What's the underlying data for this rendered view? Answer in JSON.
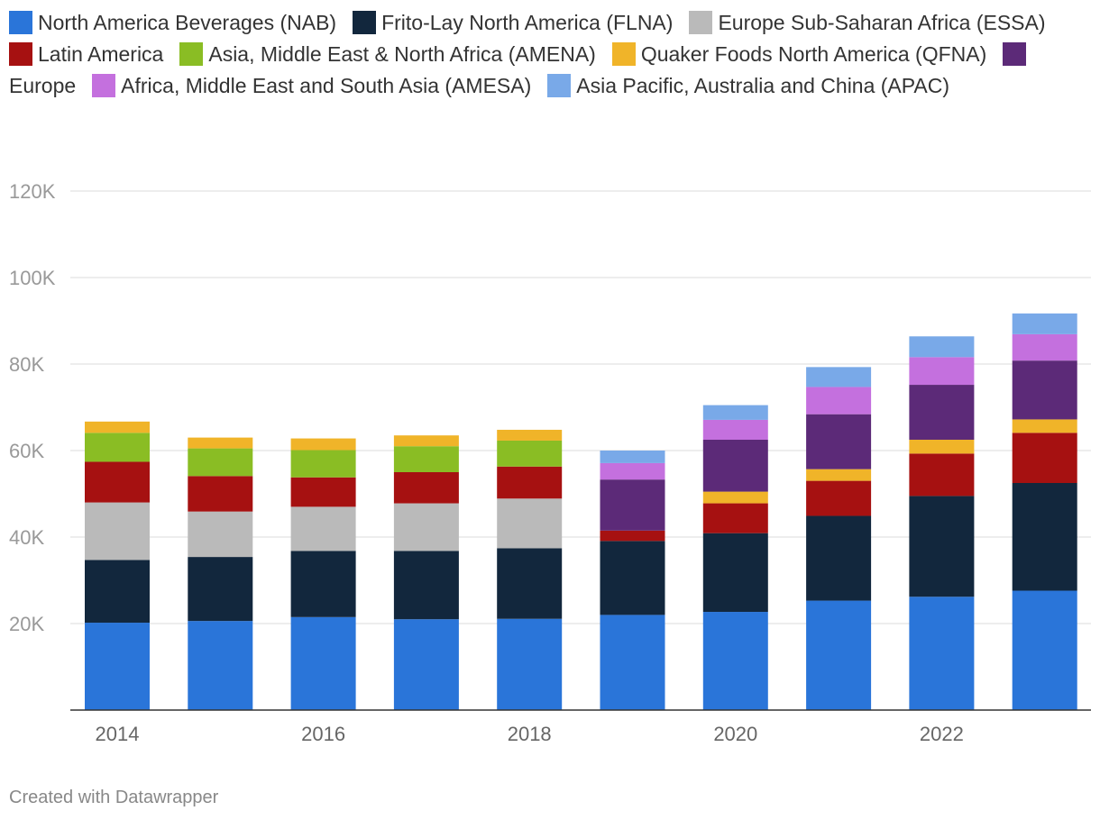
{
  "chart_data": {
    "type": "stacked-bar",
    "categories": [
      "2014",
      "2015",
      "2016",
      "2017",
      "2018",
      "2019",
      "2020",
      "2021",
      "2022",
      "2023"
    ],
    "x_tick_labels": [
      "2014",
      "2016",
      "2018",
      "2020",
      "2022"
    ],
    "y_ticks": [
      20000,
      40000,
      60000,
      80000,
      100000,
      120000
    ],
    "y_tick_labels": [
      "20K",
      "40K",
      "60K",
      "80K",
      "100K",
      "120K"
    ],
    "ylim": [
      0,
      120000
    ],
    "grid": true,
    "legend_position": "top",
    "series": [
      {
        "name": "North America Beverages (NAB)",
        "color": "#2a75d9",
        "values": [
          20200,
          20600,
          21500,
          21000,
          21100,
          22000,
          22700,
          25300,
          26200,
          27600
        ]
      },
      {
        "name": "Frito-Lay North America (FLNA)",
        "color": "#12273d",
        "values": [
          14500,
          14800,
          15300,
          15800,
          16300,
          17100,
          18200,
          19600,
          23300,
          24900
        ]
      },
      {
        "name": "Europe Sub-Saharan Africa (ESSA)",
        "color": "#bababa",
        "values": [
          13300,
          10500,
          10200,
          11000,
          11500,
          0,
          0,
          0,
          0,
          0
        ]
      },
      {
        "name": "Latin America",
        "color": "#a61111",
        "values": [
          9400,
          8200,
          6800,
          7200,
          7400,
          2400,
          6900,
          8100,
          9800,
          11600
        ]
      },
      {
        "name": "Asia, Middle East & North Africa (AMENA)",
        "color": "#8abd24",
        "values": [
          6700,
          6400,
          6300,
          6000,
          6000,
          0,
          0,
          0,
          0,
          0
        ]
      },
      {
        "name": "Quaker Foods North America (QFNA)",
        "color": "#f0b429",
        "values": [
          2600,
          2500,
          2700,
          2500,
          2500,
          0,
          2700,
          2700,
          3200,
          3100
        ]
      },
      {
        "name": "Europe",
        "color": "#5c2a78",
        "values": [
          0,
          0,
          0,
          0,
          0,
          11800,
          12000,
          12700,
          12700,
          13600
        ]
      },
      {
        "name": "Africa, Middle East and South Asia (AMESA)",
        "color": "#c470de",
        "values": [
          0,
          0,
          0,
          0,
          0,
          3800,
          4600,
          6300,
          6400,
          6100
        ]
      },
      {
        "name": "Asia Pacific, Australia and China (APAC)",
        "color": "#79a9e8",
        "values": [
          0,
          0,
          0,
          0,
          0,
          2900,
          3400,
          4600,
          4800,
          4800
        ]
      }
    ]
  },
  "footer": "Created with Datawrapper"
}
